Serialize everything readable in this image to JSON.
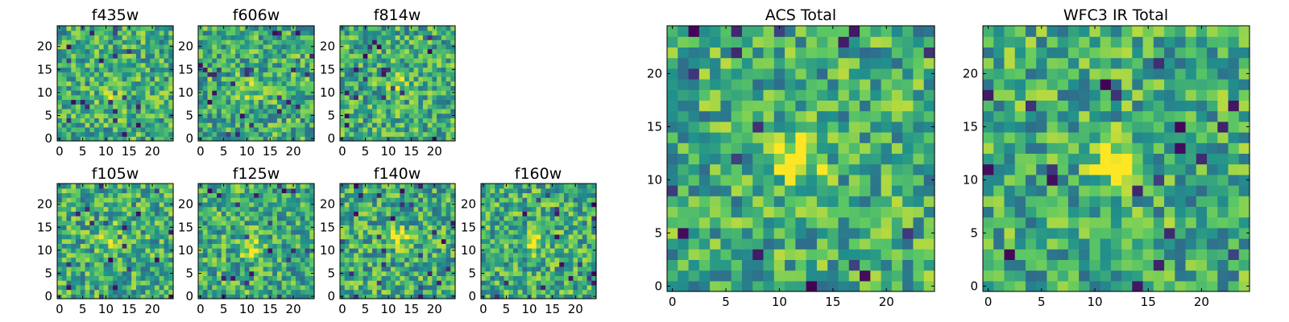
{
  "chart_data": [
    {
      "type": "heatmap",
      "title": "f435w",
      "xlim": [
        0,
        24
      ],
      "ylim": [
        0,
        24
      ],
      "xticks": [
        "0",
        "5",
        "10",
        "15",
        "20"
      ],
      "yticks": [
        "0",
        "5",
        "10",
        "15",
        "20"
      ],
      "size": 25,
      "colormap": "viridis",
      "seed": 11,
      "bright_spots": [
        {
          "x": 12,
          "y": 10,
          "value": 0.85
        }
      ]
    },
    {
      "type": "heatmap",
      "title": "f606w",
      "xlim": [
        0,
        24
      ],
      "ylim": [
        0,
        24
      ],
      "xticks": [
        "0",
        "5",
        "10",
        "15",
        "20"
      ],
      "yticks": [
        "0",
        "5",
        "10",
        "15",
        "20"
      ],
      "size": 25,
      "colormap": "viridis",
      "seed": 23,
      "bright_spots": [
        {
          "x": 11,
          "y": 11,
          "value": 0.85
        }
      ]
    },
    {
      "type": "heatmap",
      "title": "f814w",
      "xlim": [
        0,
        24
      ],
      "ylim": [
        0,
        24
      ],
      "xticks": [
        "0",
        "5",
        "10",
        "15",
        "20"
      ],
      "yticks": [
        "0",
        "5",
        "10",
        "15",
        "20"
      ],
      "size": 25,
      "colormap": "viridis",
      "seed": 37,
      "bright_spots": [
        {
          "x": 12,
          "y": 12,
          "value": 0.85
        }
      ]
    },
    {
      "type": "heatmap",
      "title": "f105w",
      "xlim": [
        0,
        24
      ],
      "ylim": [
        0,
        24
      ],
      "xticks": [
        "0",
        "5",
        "10",
        "15",
        "20"
      ],
      "yticks": [
        "0",
        "5",
        "10",
        "15",
        "20"
      ],
      "size": 25,
      "colormap": "viridis",
      "seed": 41,
      "bright_spots": [
        {
          "x": 11,
          "y": 13,
          "value": 0.9
        }
      ]
    },
    {
      "type": "heatmap",
      "title": "f125w",
      "xlim": [
        0,
        24
      ],
      "ylim": [
        0,
        24
      ],
      "xticks": [
        "0",
        "5",
        "10",
        "15",
        "20"
      ],
      "yticks": [
        "0",
        "5",
        "10",
        "15",
        "20"
      ],
      "size": 25,
      "colormap": "viridis",
      "seed": 53,
      "bright_spots": [
        {
          "x": 11,
          "y": 11,
          "value": 0.95
        }
      ]
    },
    {
      "type": "heatmap",
      "title": "f140w",
      "xlim": [
        0,
        24
      ],
      "ylim": [
        0,
        24
      ],
      "xticks": [
        "0",
        "5",
        "10",
        "15",
        "20"
      ],
      "yticks": [
        "0",
        "5",
        "10",
        "15",
        "20"
      ],
      "size": 25,
      "colormap": "viridis",
      "seed": 67,
      "bright_spots": [
        {
          "x": 12,
          "y": 13,
          "value": 0.95
        }
      ]
    },
    {
      "type": "heatmap",
      "title": "f160w",
      "xlim": [
        0,
        24
      ],
      "ylim": [
        0,
        24
      ],
      "xticks": [
        "0",
        "5",
        "10",
        "15",
        "20"
      ],
      "yticks": [
        "0",
        "5",
        "10",
        "15",
        "20"
      ],
      "size": 25,
      "colormap": "viridis",
      "seed": 79,
      "bright_spots": [
        {
          "x": 11,
          "y": 12,
          "value": 0.95
        }
      ]
    },
    {
      "type": "heatmap",
      "title": "ACS Total",
      "xlim": [
        0,
        24
      ],
      "ylim": [
        0,
        24
      ],
      "xticks": [
        "0",
        "5",
        "10",
        "15",
        "20"
      ],
      "yticks": [
        "0",
        "5",
        "10",
        "15",
        "20"
      ],
      "size": 25,
      "colormap": "viridis",
      "seed": 97,
      "bright_spots": [
        {
          "x": 12,
          "y": 12,
          "value": 1.0
        }
      ]
    },
    {
      "type": "heatmap",
      "title": "WFC3 IR Total",
      "xlim": [
        0,
        24
      ],
      "ylim": [
        0,
        24
      ],
      "xticks": [
        "0",
        "5",
        "10",
        "15",
        "20"
      ],
      "yticks": [
        "0",
        "5",
        "10",
        "15",
        "20"
      ],
      "size": 25,
      "colormap": "viridis",
      "seed": 131,
      "bright_spots": [
        {
          "x": 12,
          "y": 12,
          "value": 1.0
        }
      ]
    }
  ]
}
